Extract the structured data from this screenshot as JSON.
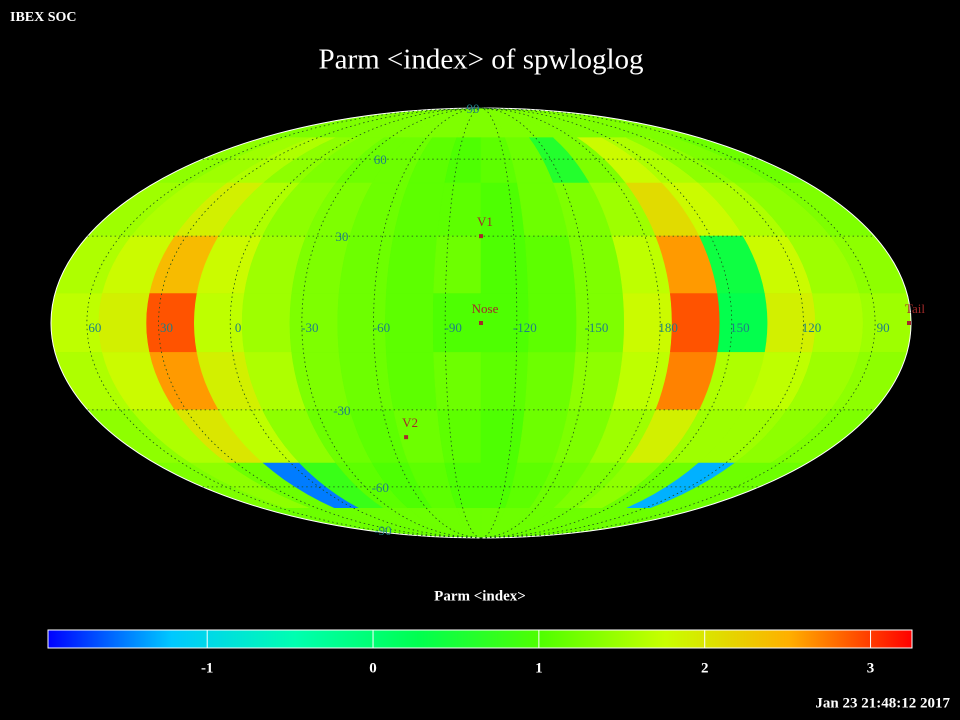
{
  "header": {
    "label": "IBEX SOC"
  },
  "title": "Parm  <index> of spwloglog",
  "map": {
    "grid": [
      [
        1.3,
        1.3,
        1.3,
        1.3,
        1.3,
        1.3,
        1.3,
        1.3,
        1.3,
        1.3,
        1.3,
        1.3,
        1.3,
        1.3,
        1.3,
        1.3,
        1.3,
        1.3
      ],
      [
        1.4,
        1.5,
        1.6,
        1.4,
        1.3,
        1.2,
        1.2,
        1.1,
        1.0,
        1.1,
        1.2,
        0.6,
        1.3,
        1.8,
        1.6,
        1.4,
        1.3,
        1.2
      ],
      [
        1.5,
        1.6,
        1.9,
        1.6,
        1.4,
        1.3,
        1.2,
        1.1,
        1.1,
        1.0,
        1.2,
        1.3,
        1.5,
        2.1,
        1.8,
        1.6,
        1.4,
        1.3
      ],
      [
        1.6,
        1.8,
        2.4,
        1.8,
        1.5,
        1.3,
        1.2,
        1.1,
        1.2,
        1.0,
        1.1,
        1.3,
        1.7,
        2.6,
        0.4,
        1.8,
        1.5,
        1.4
      ],
      [
        1.7,
        1.9,
        2.9,
        1.7,
        1.5,
        1.3,
        1.2,
        1.1,
        1.0,
        1.0,
        1.1,
        1.3,
        1.8,
        2.9,
        0.3,
        1.9,
        1.6,
        1.5
      ],
      [
        1.6,
        1.8,
        2.6,
        1.9,
        1.6,
        1.3,
        1.2,
        1.1,
        1.2,
        1.1,
        1.2,
        1.4,
        1.7,
        2.7,
        1.6,
        1.7,
        1.5,
        1.4
      ],
      [
        1.4,
        1.6,
        2.0,
        1.7,
        1.4,
        1.2,
        1.1,
        1.2,
        1.1,
        1.0,
        1.2,
        1.3,
        1.5,
        1.9,
        1.5,
        1.5,
        1.4,
        1.3
      ],
      [
        1.3,
        1.4,
        1.2,
        -1.5,
        0.8,
        1.1,
        1.0,
        1.1,
        1.0,
        1.0,
        1.1,
        1.2,
        1.3,
        1.4,
        1.2,
        -1.3,
        1.2,
        1.2
      ],
      [
        1.2,
        1.2,
        1.2,
        1.2,
        1.2,
        1.2,
        1.2,
        1.2,
        1.2,
        1.2,
        1.2,
        1.2,
        1.2,
        1.2,
        1.2,
        1.2,
        1.2,
        1.2
      ]
    ],
    "lon_labels": [
      60,
      30,
      0,
      -30,
      -60,
      -90,
      -120,
      -150,
      180,
      150,
      120,
      90
    ],
    "lat_labels": [
      90,
      60,
      30,
      -30,
      -60,
      -90
    ],
    "markers": [
      {
        "label": "V1",
        "lon": -105,
        "lat": 30
      },
      {
        "label": "Nose",
        "lon": -105,
        "lat": 0
      },
      {
        "label": "V2",
        "lon": -68,
        "lat": -40
      },
      {
        "label": "Tail",
        "lon": 75,
        "lat": 0
      }
    ]
  },
  "colorbar": {
    "title": "Parm  <index>",
    "range": [
      -1.96,
      3.25
    ],
    "ticks": [
      -1,
      0,
      1,
      2,
      3
    ],
    "colors": [
      "#0000ff",
      "#00c8ff",
      "#00ffb0",
      "#00ff50",
      "#50ff00",
      "#c8ff00",
      "#ffb000",
      "#ff0000"
    ]
  },
  "timestamp": "Jan 23 21:48:12 2017"
}
